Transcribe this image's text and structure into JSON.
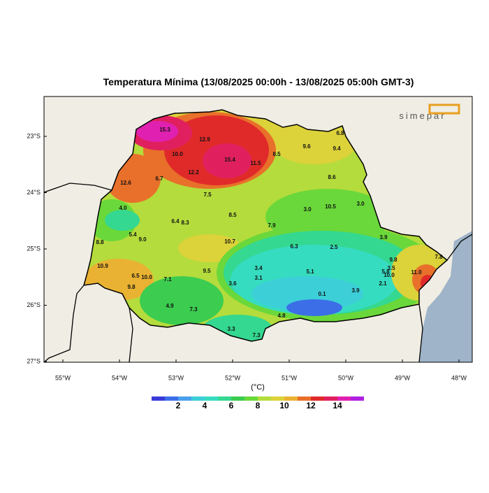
{
  "title": "Temperatura Mínima (13/08/2025 00:00h - 13/08/2025 05:00h GMT-3)",
  "logo": "simepar",
  "lat_labels": [
    "23°S",
    "24°S",
    "25°S",
    "26°S",
    "27°S"
  ],
  "lon_labels": [
    "55°W",
    "54°W",
    "53°W",
    "52°W",
    "51°W",
    "50°W",
    "49°W",
    "48°W"
  ],
  "stations": [
    "15.3",
    "12.9",
    "6.8",
    "9.6",
    "9.4",
    "10.0",
    "15.4",
    "11.5",
    "8.5",
    "12.2",
    "6.7",
    "8.6",
    "12.6",
    "7.5",
    "4.0",
    "3.0",
    "10.5",
    "3.0",
    "8.5",
    "6.4",
    "8.3",
    "7.9",
    "5.4",
    "9.0",
    "3.9",
    "8.8",
    "10.7",
    "6.3",
    "2.5",
    "9.8",
    "7.8",
    "10.9",
    "3.4",
    "9.5",
    "5.1",
    "3.5",
    "5.8",
    "11.0",
    "10.0",
    "6.5",
    "10.0",
    "7.1",
    "3.1",
    "3.6",
    "2.1",
    "9.8",
    "3.9",
    "0.1",
    "4.9",
    "7.3",
    "4.8",
    "3.3",
    "7.3"
  ],
  "colorbar": {
    "unit": "(°C)",
    "ticks": [
      2,
      4,
      6,
      8,
      10,
      12,
      14
    ],
    "colors": [
      "#3a3ad8",
      "#3c6ee8",
      "#4aa0ec",
      "#3ccfd8",
      "#36dcc0",
      "#34d890",
      "#3ccc50",
      "#6ad83a",
      "#b4dc3c",
      "#dcd23a",
      "#eab232",
      "#e8702a",
      "#e02a2a",
      "#e0205e",
      "#e020b0",
      "#b020e0"
    ]
  }
}
